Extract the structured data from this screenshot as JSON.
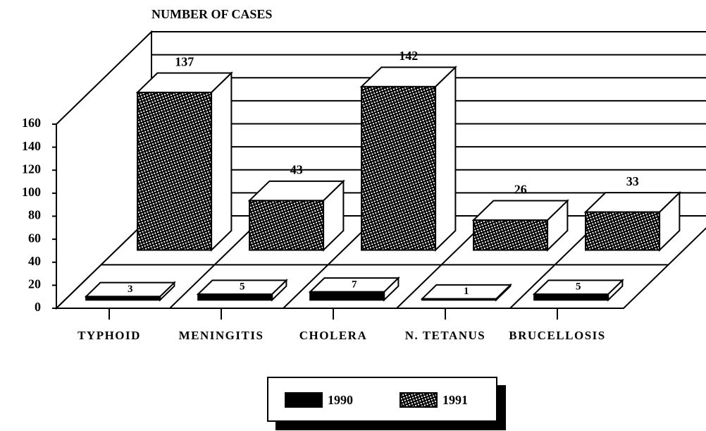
{
  "chart_data": {
    "type": "bar3d",
    "title": "NUMBER OF CASES",
    "categories": [
      "TYPHOID",
      "MENINGITIS",
      "CHOLERA",
      "N. TETANUS",
      "BRUCELLOSIS"
    ],
    "series": [
      {
        "name": "1990",
        "color": "#000000",
        "hatch": false,
        "values": [
          3,
          5,
          7,
          1,
          5
        ]
      },
      {
        "name": "1991",
        "color": "#000000",
        "hatch": true,
        "values": [
          137,
          43,
          142,
          26,
          33
        ]
      }
    ],
    "ylim": [
      0,
      160
    ],
    "yticks": [
      0,
      20,
      40,
      60,
      80,
      100,
      120,
      140,
      160
    ],
    "grid": true
  }
}
